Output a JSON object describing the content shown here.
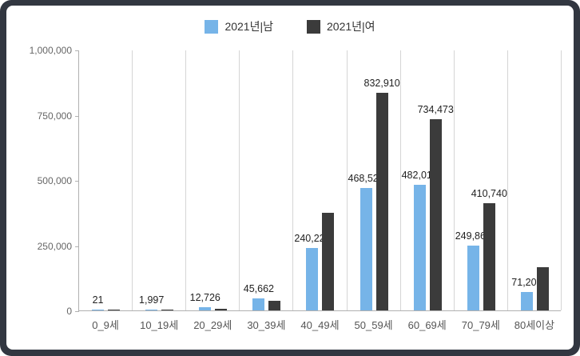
{
  "chart_data": {
    "type": "bar",
    "title": "",
    "xlabel": "",
    "ylabel": "",
    "ylim": [
      0,
      1000000
    ],
    "grid": "vertical-category-lines",
    "legend_position": "top-center",
    "yticks": [
      {
        "value": 0,
        "label": "0"
      },
      {
        "value": 250000,
        "label": "250,000"
      },
      {
        "value": 500000,
        "label": "500,000"
      },
      {
        "value": 750000,
        "label": "750,000"
      },
      {
        "value": 1000000,
        "label": "1,000,000"
      }
    ],
    "categories": [
      "0_9세",
      "10_19세",
      "20_29세",
      "30_39세",
      "40_49세",
      "50_59세",
      "60_69세",
      "70_79세",
      "80세이상"
    ],
    "series": [
      {
        "name": "2021년|남",
        "color": "#76b4e8",
        "values": [
          21,
          1997,
          12726,
          45662,
          240229,
          468521,
          482017,
          249863,
          71205
        ],
        "labels": [
          "21",
          "1,997",
          "12,726",
          "45,662",
          "240,229",
          "468,521",
          "482,017",
          "249,863",
          "71,205"
        ]
      },
      {
        "name": "2021년|여",
        "color": "#3b3b3b",
        "values": [
          20,
          1500,
          6000,
          38000,
          375000,
          832910,
          734473,
          410740,
          165000
        ],
        "labels": [
          null,
          null,
          null,
          null,
          null,
          "832,910",
          "734,473",
          "410,740",
          null
        ]
      }
    ]
  },
  "colors": {
    "frame": "#323741",
    "background": "#ffffff",
    "gridline": "#d5d5d5",
    "axis": "#b0b0b0"
  }
}
